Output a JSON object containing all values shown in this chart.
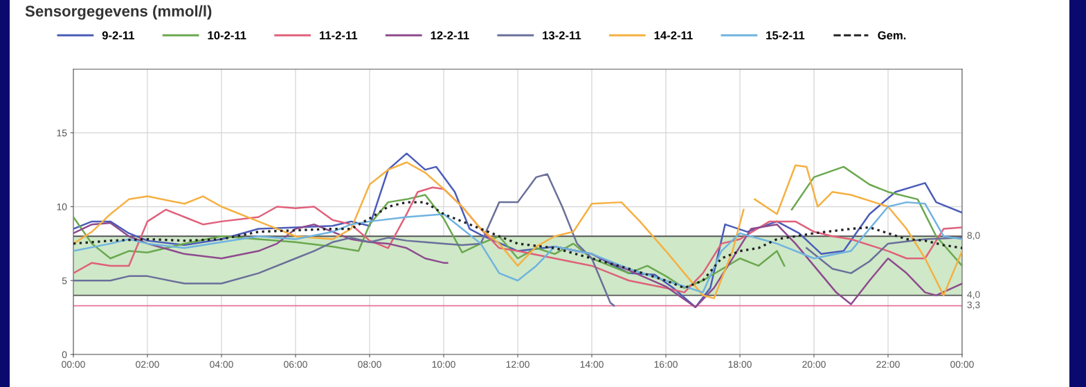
{
  "chart_data": {
    "type": "line",
    "title": "Sensorgegevens (mmol/l)",
    "xlim": [
      0,
      24
    ],
    "xticks": [
      {
        "value": 0,
        "label": "00:00"
      },
      {
        "value": 2,
        "label": "02:00"
      },
      {
        "value": 4,
        "label": "04:00"
      },
      {
        "value": 6,
        "label": "06:00"
      },
      {
        "value": 8,
        "label": "08:00"
      },
      {
        "value": 10,
        "label": "10:00"
      },
      {
        "value": 12,
        "label": "12:00"
      },
      {
        "value": 14,
        "label": "14:00"
      },
      {
        "value": 16,
        "label": "16:00"
      },
      {
        "value": 18,
        "label": "18:00"
      },
      {
        "value": 20,
        "label": "20:00"
      },
      {
        "value": 22,
        "label": "22:00"
      },
      {
        "value": 24,
        "label": "00:00"
      }
    ],
    "ylim": [
      0,
      19.3
    ],
    "yticks": [
      0,
      5,
      10,
      15
    ],
    "grid": true,
    "legend": "top",
    "bands": [
      {
        "axis": "y",
        "from": 4,
        "to": 8,
        "color": "#cfe8c8"
      }
    ],
    "ref_lines": [
      {
        "axis": "y",
        "value": 8,
        "label": "8,0",
        "color": "#555555"
      },
      {
        "axis": "y",
        "value": 4,
        "label": "4,0",
        "color": "#555555"
      },
      {
        "axis": "y",
        "value": 3.3,
        "label": "3,3",
        "color": "#e8709a"
      }
    ],
    "series": [
      {
        "name": "9-2-11",
        "color": "#4a5cb8",
        "x": [
          0,
          0.5,
          1,
          1.5,
          2,
          3,
          4,
          5,
          6,
          7,
          7.5,
          8,
          8.5,
          9,
          9.5,
          9.8,
          10.3,
          10.7,
          11,
          12,
          13,
          14,
          15,
          15.7,
          16.2,
          16.8,
          17.2,
          17.6,
          18.2,
          19,
          19.6,
          20.2,
          20.8,
          21.5,
          22.2,
          23,
          23.3,
          24
        ],
        "values": [
          8.5,
          9,
          9,
          8.2,
          7.7,
          7.4,
          7.8,
          8.5,
          8.6,
          8.7,
          9,
          8.7,
          12.5,
          13.6,
          12.5,
          12.7,
          11,
          8.5,
          8.1,
          7,
          7.3,
          6.8,
          5.5,
          5.4,
          4.5,
          3.2,
          4.5,
          8.8,
          8.3,
          9,
          8.2,
          6.8,
          7,
          9.5,
          11,
          11.6,
          10.3,
          9.6
        ]
      },
      {
        "name": "10-2-11",
        "color": "#6aa84f",
        "x": [
          0,
          0.5,
          1,
          1.5,
          2,
          3,
          4,
          5,
          6,
          7,
          7.7,
          8,
          8.5,
          9,
          9.5,
          10,
          10.5,
          11,
          11.5,
          12,
          12.5,
          13,
          13.5,
          14,
          15,
          15.5,
          16,
          16.5,
          17,
          18,
          18.5,
          19,
          19.2,
          19.3,
          19.4,
          20,
          20.8,
          21.5,
          22,
          22.8,
          23.3,
          24
        ],
        "values": [
          9.3,
          7.5,
          6.5,
          7,
          6.9,
          7.5,
          8,
          7.8,
          7.6,
          7.3,
          7,
          8.8,
          10.3,
          10.5,
          10.8,
          9.2,
          6.9,
          7.5,
          8,
          6.5,
          7.2,
          6.8,
          7.5,
          6.5,
          5.5,
          6,
          5.3,
          4.5,
          5,
          6.5,
          6,
          7,
          6,
          null,
          9.8,
          12,
          12.7,
          11.5,
          11,
          10.5,
          8,
          6
        ]
      },
      {
        "name": "11-2-11",
        "color": "#e0607a",
        "x": [
          0,
          0.5,
          1,
          1.5,
          2,
          2.5,
          3,
          3.5,
          4,
          5,
          5.5,
          6,
          6.5,
          7,
          7.5,
          8,
          8.5,
          9,
          9.3,
          9.7,
          10,
          10.5,
          11,
          11.5,
          12,
          13,
          14,
          14.5,
          15,
          16,
          16.5,
          17,
          17.5,
          18,
          18.8,
          19.5,
          20,
          20.5,
          21,
          22,
          22.5,
          23,
          23.5,
          24
        ],
        "values": [
          5.5,
          6.2,
          6,
          6,
          9,
          9.8,
          9.3,
          8.8,
          9,
          9.3,
          10,
          9.9,
          10,
          9.1,
          8.8,
          7.7,
          7.2,
          9.5,
          11,
          11.3,
          11.2,
          10,
          8.5,
          7.2,
          7,
          6.5,
          6,
          5.5,
          5,
          4.5,
          4.2,
          5.5,
          7.5,
          7.8,
          9,
          9,
          8.3,
          8,
          7.8,
          7,
          6.5,
          6.5,
          8.5,
          8.6
        ]
      },
      {
        "name": "12-2-11",
        "color": "#8e4a8e",
        "x": [
          0,
          0.5,
          1,
          1.5,
          2,
          3,
          4,
          5,
          5.5,
          6,
          6.5,
          7,
          7.5,
          8,
          8.5,
          9,
          9.5,
          10,
          10.1,
          12,
          13,
          14,
          15,
          16,
          16.8,
          17.3,
          18.3,
          19,
          19.5,
          20,
          20.6,
          21,
          21.5,
          22,
          22.5,
          23,
          23.3,
          24
        ],
        "values": [
          8.2,
          8.8,
          8.9,
          8,
          7.5,
          6.8,
          6.5,
          7,
          7.5,
          8.5,
          8.8,
          8.3,
          7.8,
          7.6,
          7.5,
          7.2,
          6.5,
          6.2,
          6.2,
          null,
          7.3,
          6.8,
          5.7,
          4.6,
          3.2,
          4.5,
          8.5,
          8.8,
          7.5,
          6,
          4.2,
          3.4,
          5,
          6.5,
          5.5,
          4.2,
          4,
          4.8
        ]
      },
      {
        "name": "13-2-11",
        "color": "#6a6f9a",
        "x": [
          0,
          1,
          1.5,
          2,
          3,
          4,
          5,
          6,
          6.5,
          7,
          7.5,
          8,
          8.5,
          9,
          9.5,
          10,
          10.5,
          11,
          11.5,
          12,
          12.5,
          12.8,
          13.2,
          13.6,
          14,
          14.5,
          14.6,
          19.3,
          19.8,
          20.5,
          21,
          21.5,
          22,
          23,
          24
        ],
        "values": [
          5,
          5,
          5.3,
          5.3,
          4.8,
          4.8,
          5.5,
          6.5,
          7,
          7.6,
          7.9,
          7.6,
          7.9,
          7.7,
          7.6,
          7.5,
          7.4,
          7.5,
          10.3,
          10.3,
          12,
          12.2,
          10,
          7.5,
          6.5,
          3.5,
          3.3,
          null,
          7.2,
          5.8,
          5.5,
          6.3,
          7.5,
          7.8,
          7.9
        ]
      },
      {
        "name": "14-2-11",
        "color": "#f5b041",
        "x": [
          0,
          0.5,
          1,
          1.5,
          2,
          3,
          3.5,
          4,
          5,
          6,
          7,
          7.5,
          8,
          8.5,
          9,
          9.5,
          10,
          10.5,
          11,
          11.5,
          12,
          12.5,
          13,
          13.5,
          14,
          14.8,
          15.3,
          16,
          16.5,
          17,
          17.3,
          17.8,
          18.1,
          18.2,
          18.4,
          19,
          19.5,
          19.8,
          20.1,
          20.5,
          21,
          22,
          22.5,
          23,
          23.5,
          24
        ],
        "values": [
          7.5,
          8.3,
          9.5,
          10.5,
          10.7,
          10.2,
          10.7,
          10,
          9,
          8,
          7.8,
          8.5,
          11.5,
          12.5,
          13,
          12.3,
          11.2,
          10,
          8.5,
          7.5,
          6,
          7.3,
          8,
          8.3,
          10.2,
          10.3,
          9,
          7,
          5.5,
          4,
          3.8,
          7,
          9.8,
          null,
          10.5,
          9.5,
          12.8,
          12.7,
          10,
          11,
          10.8,
          10,
          8.5,
          6.5,
          4,
          7
        ]
      },
      {
        "name": "15-2-11",
        "color": "#6fb3e0",
        "x": [
          0,
          1,
          1.5,
          2,
          3,
          4,
          5,
          6,
          7,
          7.5,
          8,
          9,
          10,
          10.5,
          11,
          11.5,
          12,
          12.5,
          13,
          14,
          15,
          16,
          16.5,
          17,
          17.5,
          18,
          19,
          20,
          21,
          22,
          22.5,
          23,
          23.5,
          24
        ],
        "values": [
          7,
          7.5,
          7.8,
          7.5,
          7.2,
          7.6,
          8,
          7.8,
          8.3,
          8.8,
          9,
          9.3,
          9.5,
          8.5,
          7.5,
          5.5,
          5,
          6,
          7.3,
          6.8,
          5.8,
          5,
          4.6,
          4.2,
          7,
          8.2,
          7.5,
          6.5,
          7,
          10,
          10.3,
          10.2,
          8,
          7.8
        ]
      },
      {
        "name": "Gem.",
        "color": "#222222",
        "line_style": "dotted",
        "x": [
          0,
          1,
          2,
          3,
          4,
          5,
          6,
          7,
          7.5,
          8,
          8.5,
          9,
          9.5,
          10,
          11,
          12,
          13,
          14,
          15,
          16,
          16.5,
          17,
          17.5,
          18,
          18.5,
          19,
          20,
          21,
          21.5,
          22,
          22.5,
          23,
          23.5,
          24
        ],
        "values": [
          7.5,
          7.7,
          7.8,
          7.7,
          7.8,
          8.3,
          8.4,
          8.5,
          8.5,
          9.2,
          10,
          10.3,
          10.3,
          9.5,
          8.5,
          7.5,
          7.2,
          6.5,
          5.8,
          5,
          4.5,
          5,
          6.5,
          7,
          7.2,
          7.8,
          8.2,
          8.5,
          8.6,
          8.2,
          7.8,
          7.7,
          7.4,
          7.2
        ]
      }
    ]
  }
}
